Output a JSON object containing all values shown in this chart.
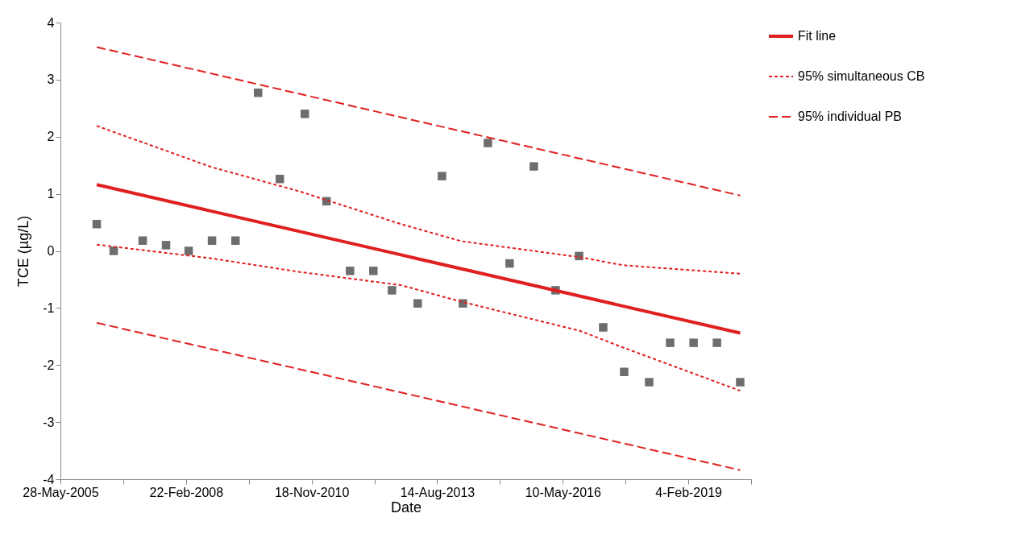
{
  "chart_data": {
    "type": "scatter",
    "xlabel": "Date",
    "ylabel": "TCE (µg/L)",
    "xlim": [
      "2005-05-28",
      "2020-06-18"
    ],
    "xticks": [
      {
        "value": "2005-05-28",
        "label": "28-May-2005"
      },
      {
        "value": "2006-10-10",
        "label": null
      },
      {
        "value": "2008-02-22",
        "label": "22-Feb-2008"
      },
      {
        "value": "2009-07-06",
        "label": null
      },
      {
        "value": "2010-11-18",
        "label": "18-Nov-2010"
      },
      {
        "value": "2012-04-01",
        "label": null
      },
      {
        "value": "2013-08-14",
        "label": "14-Aug-2013"
      },
      {
        "value": "2014-12-27",
        "label": null
      },
      {
        "value": "2016-05-10",
        "label": "10-May-2016"
      },
      {
        "value": "2017-09-22",
        "label": null
      },
      {
        "value": "2019-02-04",
        "label": "4-Feb-2019"
      },
      {
        "value": "2020-06-18",
        "label": null
      }
    ],
    "ylim": [
      -4,
      4
    ],
    "yticks": [
      -4,
      -3,
      -2,
      -1,
      0,
      1,
      2,
      3,
      4
    ],
    "grid": false,
    "legend": "right",
    "series": [
      {
        "type": "scatter",
        "color": "#6d6d6d",
        "marker": "square",
        "x": [
          "2006-03-13",
          "2006-07-26",
          "2007-03-14",
          "2007-09-16",
          "2008-03-14",
          "2008-09-16",
          "2009-03-22",
          "2009-09-18",
          "2010-03-10",
          "2010-09-25",
          "2011-03-17",
          "2011-09-20",
          "2012-03-24",
          "2012-08-19",
          "2013-03-12",
          "2013-09-21",
          "2014-03-07",
          "2014-09-22",
          "2015-03-14",
          "2015-09-23",
          "2016-03-14",
          "2016-09-17",
          "2017-03-28",
          "2017-09-11",
          "2018-03-29",
          "2018-09-12",
          "2019-03-18",
          "2019-09-20",
          "2020-03-23"
        ],
        "values": [
          0.47,
          0,
          0.18,
          0.1,
          0,
          0.18,
          0.18,
          2.77,
          1.26,
          2.4,
          0.87,
          -0.35,
          -0.35,
          -0.69,
          -0.92,
          1.31,
          -0.92,
          1.89,
          -0.22,
          1.48,
          -0.69,
          -0.09,
          -1.34,
          -2.12,
          -2.3,
          -1.61,
          -1.61,
          -1.61,
          -2.3
        ]
      },
      {
        "type": "line",
        "name": "Fit line",
        "color": "#e02020",
        "line_style": "solid",
        "x": [
          "2006-03-13",
          "2020-03-23"
        ],
        "values": [
          1.16,
          -1.44
        ]
      },
      {
        "type": "line",
        "name": "95% simultaneous CB",
        "color": "#e02020",
        "line_style": "dotted",
        "x": [
          "2006-03-13",
          "2008-09-10",
          "2010-08-18",
          "2012-10-28",
          "2014-02-22",
          "2016-09-24",
          "2017-08-30",
          "2020-03-23"
        ],
        "values": [
          2.19,
          1.47,
          1.04,
          0.47,
          0.17,
          -0.11,
          -0.25,
          -0.4
        ]
      },
      {
        "type": "line",
        "color": "#e02020",
        "line_style": "dotted",
        "x": [
          "2006-03-13",
          "2008-09-10",
          "2010-08-18",
          "2012-10-28",
          "2014-02-22",
          "2016-09-24",
          "2017-08-30",
          "2020-03-23"
        ],
        "values": [
          0.11,
          -0.13,
          -0.37,
          -0.6,
          -0.89,
          -1.4,
          -1.69,
          -2.45
        ]
      },
      {
        "type": "line",
        "name": "95% individual PB",
        "color": "#e02020",
        "line_style": "dashed",
        "x": [
          "2006-03-13",
          "2020-03-23"
        ],
        "values": [
          3.57,
          0.97
        ]
      },
      {
        "type": "line",
        "color": "#e02020",
        "line_style": "dashed",
        "x": [
          "2006-03-13",
          "2020-03-23"
        ],
        "values": [
          -1.26,
          -3.84
        ]
      }
    ]
  }
}
